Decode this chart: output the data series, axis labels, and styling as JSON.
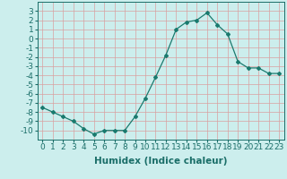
{
  "x": [
    0,
    1,
    2,
    3,
    4,
    5,
    6,
    7,
    8,
    9,
    10,
    11,
    12,
    13,
    14,
    15,
    16,
    17,
    18,
    19,
    20,
    21,
    22,
    23
  ],
  "y": [
    -7.5,
    -8.0,
    -8.5,
    -9.0,
    -9.8,
    -10.4,
    -10.0,
    -10.0,
    -10.0,
    -8.5,
    -6.5,
    -4.2,
    -1.8,
    1.0,
    1.8,
    2.0,
    2.8,
    1.5,
    0.5,
    -2.5,
    -3.2,
    -3.2,
    -3.8,
    -3.8
  ],
  "line_color": "#1a7a6e",
  "marker": "D",
  "marker_size": 2,
  "bg_color": "#cceeed",
  "grid_color": "#c0dbd9",
  "xlabel": "Humidex (Indice chaleur)",
  "ylim": [
    -11,
    4
  ],
  "xlim": [
    -0.5,
    23.5
  ],
  "yticks": [
    -10,
    -9,
    -8,
    -7,
    -6,
    -5,
    -4,
    -3,
    -2,
    -1,
    0,
    1,
    2,
    3
  ],
  "xticks": [
    0,
    1,
    2,
    3,
    4,
    5,
    6,
    7,
    8,
    9,
    10,
    11,
    12,
    13,
    14,
    15,
    16,
    17,
    18,
    19,
    20,
    21,
    22,
    23
  ],
  "xtick_labels": [
    "0",
    "1",
    "2",
    "3",
    "4",
    "5",
    "6",
    "7",
    "8",
    "9",
    "10",
    "11",
    "12",
    "13",
    "14",
    "15",
    "16",
    "17",
    "18",
    "19",
    "20",
    "21",
    "22",
    "23"
  ],
  "font_size": 6.5,
  "xlabel_fontsize": 7.5,
  "label_color": "#1a6e68"
}
